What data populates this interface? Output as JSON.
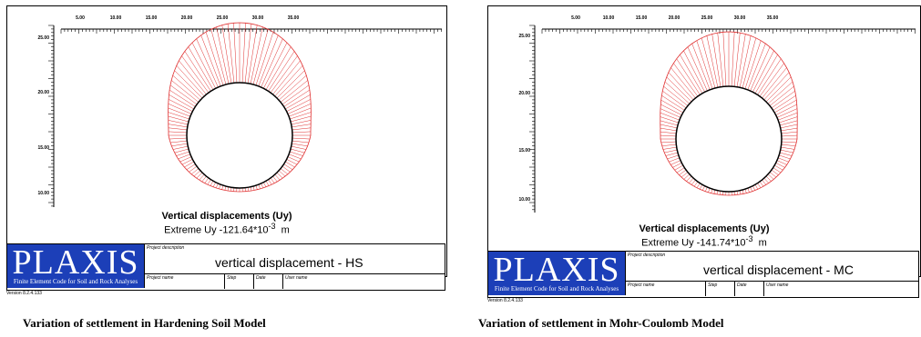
{
  "panels": [
    {
      "x_ticks": [
        "5.00",
        "10.00",
        "15.00",
        "20.00",
        "25.00",
        "30.00",
        "35.00"
      ],
      "y_ticks": [
        "25.00",
        "20.00",
        "15.00",
        "10.00"
      ],
      "annotation": {
        "title": "Vertical displacements (Uy)",
        "extreme_prefix": "Extreme Uy -121.64*10",
        "exponent": "-3",
        "unit": "m"
      },
      "titleblock": {
        "logo": "PLAXIS",
        "logo_sub": "Finite Element Code for Soil and Rock Analyses",
        "project_description_label": "Project description",
        "project_title": "vertical displacement - HS",
        "fields": [
          "Project name",
          "Step",
          "Date",
          "User name"
        ],
        "version": "Version 8.2.4.133"
      },
      "caption": "Variation  of settlement in Hardening  Soil Model"
    },
    {
      "x_ticks": [
        "5.00",
        "10.00",
        "15.00",
        "20.00",
        "25.00",
        "30.00",
        "35.00"
      ],
      "y_ticks": [
        "25.00",
        "20.00",
        "15.00",
        "10.00"
      ],
      "annotation": {
        "title": "Vertical displacements (Uy)",
        "extreme_prefix": "Extreme Uy -141.74*10",
        "exponent": "-3",
        "unit": "m"
      },
      "titleblock": {
        "logo": "PLAXIS",
        "logo_sub": "Finite Element Code for Soil and Rock Analyses",
        "project_description_label": "Project description",
        "project_title": "vertical displacement - MC",
        "fields": [
          "Project name",
          "Step",
          "Date",
          "User name"
        ],
        "version": "Version 8.2.4.133"
      },
      "caption": "Variation  of settlement in Mohr-Coulomb  Model"
    }
  ],
  "colors": {
    "displacement": "#e03030",
    "tunnel": "#000000",
    "logo_bg": "#1c3fb8"
  }
}
